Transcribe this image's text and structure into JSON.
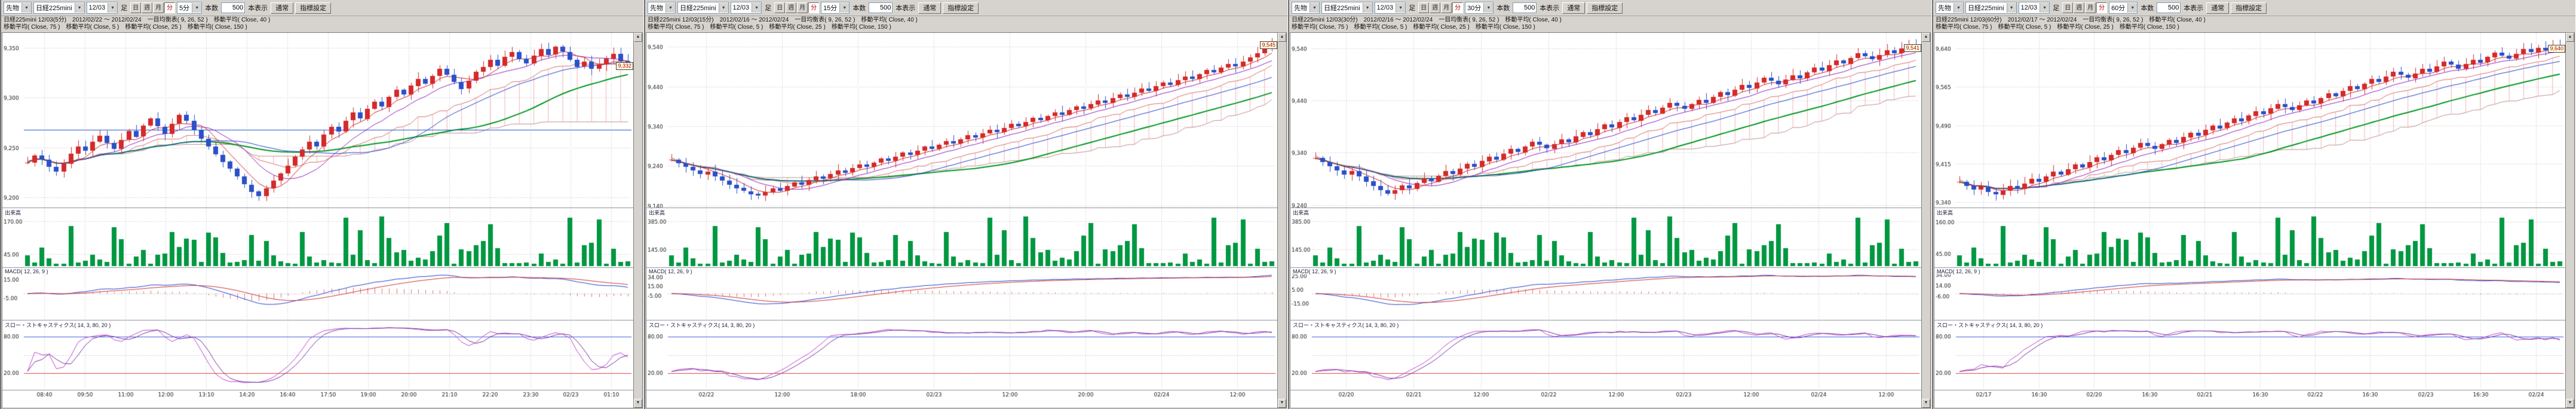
{
  "icons": {
    "chevron_down": "▼",
    "scroll_up": "▲",
    "scroll_down": "▼"
  },
  "colors": {
    "up_candle": "#d42a2a",
    "down_candle": "#2b50c8",
    "ma5": "#d02020",
    "ma10": "#9020c0",
    "ma25": "#2040d0",
    "ma40": "#009820",
    "cloud": "rgba(224,88,88,0.45)",
    "volume_bar": "#009840",
    "macd_line": "#2040d0",
    "macd_signal": "#d03030",
    "macd_hist": "rgba(224,64,64,0.75)",
    "stoch_k": "#c040d0",
    "stoch_d": "#7030a0",
    "stoch_high_line": "#4060e0",
    "stoch_low_line": "#e04040",
    "grid": "#c4c4d0",
    "reference_line": "#2050d0"
  },
  "panels": [
    {
      "toolbar": {
        "category": "先物",
        "symbol": "日経225mini",
        "month": "12/03",
        "bar_label": "足",
        "period_buttons": [
          "日",
          "週",
          "月",
          "分"
        ],
        "active_period": "分",
        "timeframe": "5分",
        "count_label": "本数",
        "count_value": "500",
        "count_unit": "本表示",
        "mode_button": "通常",
        "settings_button": "指標設定"
      },
      "title_line1": "日経225mini 12/03(5分)　2012/02/22 ～ 2012/02/24　一目均衡表( 9, 26, 52 )　移動平均( Close, 40 )",
      "title_line2": "移動平均( Close, 75 )　移動平均( Close, 5 )　移動平均( Close, 25 )　移動平均( Close, 150 )",
      "sections": {
        "volume_label": "出来高",
        "macd_label": "MACD( 12, 26, 9 )",
        "stoch_label": "スロー・ストキャスティクス( 14, 3, 80, 20 )"
      },
      "current_price": "9,332",
      "reference_price": 9268,
      "axes": {
        "price_ticks": [
          "9,350",
          "9,300",
          "9,250",
          "9,200"
        ],
        "volume_ticks": [
          "170.00",
          "45.00"
        ],
        "macd_ticks": [
          "15.00",
          "-5.00"
        ],
        "stoch_ticks": [
          "80.00",
          "20.00"
        ],
        "time_labels": [
          "08:40",
          "09:50",
          "11:00",
          "12:00",
          "13:10",
          "14:20",
          "16:40",
          "17:50",
          "19:00",
          "20:00",
          "21:10",
          "22:20",
          "23:30",
          "02/23",
          "01:10"
        ]
      }
    },
    {
      "toolbar": {
        "category": "先物",
        "symbol": "日経225mini",
        "month": "12/03",
        "bar_label": "足",
        "period_buttons": [
          "日",
          "週",
          "月",
          "分"
        ],
        "active_period": "分",
        "timeframe": "15分",
        "count_label": "本数",
        "count_value": "500",
        "count_unit": "本表示",
        "mode_button": "通常",
        "settings_button": "指標設定"
      },
      "title_line1": "日経225mini 12/03(15分)　2012/02/16 ～ 2012/02/24　一目均衡表( 9, 26, 52 )　移動平均( Close, 40 )",
      "title_line2": "移動平均( Close, 75 )　移動平均( Close, 5 )　移動平均( Close, 25 )　移動平均( Close, 150 )",
      "sections": {
        "volume_label": "出来高",
        "macd_label": "MACD( 12, 26, 9 )",
        "stoch_label": "スロー・ストキャスティクス( 14, 3, 80, 20 )"
      },
      "current_price": "9,545",
      "reference_price": null,
      "axes": {
        "price_ticks": [
          "9,540",
          "9,440",
          "9,340",
          "9,240",
          "9,140"
        ],
        "volume_ticks": [
          "385.00",
          "145.00"
        ],
        "macd_ticks": [
          "34.00",
          "15.00",
          "-5.00"
        ],
        "stoch_ticks": [
          "80.00",
          "20.00"
        ],
        "time_labels": [
          "02/22",
          "12:00",
          "18:00",
          "02/23",
          "12:00",
          "20:00",
          "02/24",
          "12:00"
        ]
      }
    },
    {
      "toolbar": {
        "category": "先物",
        "symbol": "日経225mini",
        "month": "12/03",
        "bar_label": "足",
        "period_buttons": [
          "日",
          "週",
          "月",
          "分"
        ],
        "active_period": "分",
        "timeframe": "30分",
        "count_label": "本数",
        "count_value": "500",
        "count_unit": "本表示",
        "mode_button": "通常",
        "settings_button": "指標設定"
      },
      "title_line1": "日経225mini 12/03(30分)　2012/02/16 ～ 2012/02/24　一目均衡表( 9, 26, 52 )　移動平均( Close, 40 )",
      "title_line2": "移動平均( Close, 75 )　移動平均( Close, 5 )　移動平均( Close, 25 )　移動平均( Close, 150 )",
      "sections": {
        "volume_label": "出来高",
        "macd_label": "MACD( 12, 26, 9 )",
        "stoch_label": "スロー・ストキャスティクス( 14, 3, 80, 20 )"
      },
      "current_price": "9,541",
      "reference_price": null,
      "axes": {
        "price_ticks": [
          "9,540",
          "9,440",
          "9,340",
          "9,240"
        ],
        "volume_ticks": [
          "385.00",
          "145.00"
        ],
        "macd_ticks": [
          "25.00",
          "5.00",
          "-15.00"
        ],
        "stoch_ticks": [
          "80.00",
          "20.00"
        ],
        "time_labels": [
          "02/20",
          "02/21",
          "12:00",
          "02/22",
          "12:00",
          "02/23",
          "12:00",
          "02/24",
          "12:00"
        ]
      }
    },
    {
      "toolbar": {
        "category": "先物",
        "symbol": "日経225mini",
        "month": "12/03",
        "bar_label": "足",
        "period_buttons": [
          "日",
          "週",
          "月",
          "分"
        ],
        "active_period": "分",
        "timeframe": "60分",
        "count_label": "本数",
        "count_value": "500",
        "count_unit": "本表示",
        "mode_button": "通常",
        "settings_button": "指標設定"
      },
      "title_line1": "日経225mini 12/03(60分)　2012/02/17 ～ 2012/02/24　一目均衡表( 9, 26, 52 )　移動平均( Close, 40 )",
      "title_line2": "移動平均( Close, 75 )　移動平均( Close, 5 )　移動平均( Close, 25 )　移動平均( Close, 150 )",
      "sections": {
        "volume_label": "出来高",
        "macd_label": "MACD( 12, 26, 9 )",
        "stoch_label": "スロー・ストキャスティクス( 14, 3, 80, 20 )"
      },
      "current_price": "9,640",
      "reference_price": null,
      "axes": {
        "price_ticks": [
          "9,640",
          "9,565",
          "9,490",
          "9,415",
          "9,340"
        ],
        "volume_ticks": [
          "160.00",
          "45.00"
        ],
        "macd_ticks": [
          "34.00",
          "14.00",
          "-6.00"
        ],
        "stoch_ticks": [
          "80.00",
          "20.00"
        ],
        "time_labels": [
          "02/17",
          "16:30",
          "02/20",
          "16:30",
          "02/21",
          "16:30",
          "02/22",
          "16:30",
          "02/23",
          "16:30",
          "02/24"
        ]
      }
    }
  ],
  "chart_data": [
    {
      "type": "candlestick",
      "title": "日経225mini 12/03 5分足",
      "period": "5分",
      "date_range": "2012/02/22 ～ 2012/02/24",
      "ylim": [
        9190,
        9365
      ],
      "vol_scale": 200,
      "indicators": [
        "一目均衡表(9,26,52)",
        "移動平均(Close 5/25/40/75/150)",
        "出来高",
        "MACD(12,26,9)",
        "スロー・ストキャスティクス(14,3,80,20)"
      ],
      "closes": [
        9235,
        9242,
        9238,
        9231,
        9226,
        9234,
        9244,
        9251,
        9247,
        9256,
        9262,
        9255,
        9249,
        9258,
        9267,
        9261,
        9272,
        9279,
        9271,
        9264,
        9274,
        9283,
        9277,
        9268,
        9259,
        9251,
        9243,
        9236,
        9229,
        9221,
        9213,
        9206,
        9201,
        9209,
        9217,
        9224,
        9232,
        9241,
        9248,
        9256,
        9251,
        9263,
        9271,
        9266,
        9277,
        9285,
        9279,
        9289,
        9296,
        9291,
        9301,
        9308,
        9303,
        9312,
        9319,
        9314,
        9322,
        9329,
        9323,
        9316,
        9309,
        9317,
        9326,
        9331,
        9338,
        9332,
        9341,
        9346,
        9339,
        9334,
        9342,
        9349,
        9343,
        9351,
        9346,
        9338,
        9331,
        9336,
        9329,
        9333,
        9339,
        9344,
        9337,
        9332
      ]
    },
    {
      "type": "candlestick",
      "title": "日経225mini 12/03 15分足",
      "period": "15分",
      "date_range": "2012/02/16 ～ 2012/02/24",
      "ylim": [
        9135,
        9575
      ],
      "vol_scale": 450,
      "indicators": [
        "一目均衡表(9,26,52)",
        "移動平均(Close 5/25/40/75/150)",
        "出来高",
        "MACD(12,26,9)",
        "スロー・ストキャスティクス(14,3,80,20)"
      ],
      "closes": [
        9255,
        9246,
        9237,
        9228,
        9219,
        9226,
        9214,
        9203,
        9193,
        9184,
        9176,
        9169,
        9165,
        9174,
        9183,
        9177,
        9189,
        9199,
        9193,
        9205,
        9214,
        9208,
        9219,
        9229,
        9223,
        9234,
        9243,
        9237,
        9248,
        9258,
        9252,
        9263,
        9273,
        9267,
        9278,
        9288,
        9282,
        9293,
        9302,
        9296,
        9307,
        9317,
        9311,
        9322,
        9331,
        9325,
        9336,
        9346,
        9340,
        9351,
        9361,
        9355,
        9366,
        9375,
        9369,
        9381,
        9390,
        9384,
        9395,
        9405,
        9399,
        9411,
        9420,
        9414,
        9425,
        9435,
        9429,
        9441,
        9450,
        9444,
        9456,
        9465,
        9459,
        9471,
        9481,
        9475,
        9487,
        9496,
        9490,
        9502,
        9513,
        9524,
        9536,
        9545
      ]
    },
    {
      "type": "candlestick",
      "title": "日経225mini 12/03 30分足",
      "period": "30分",
      "date_range": "2012/02/16 ～ 2012/02/24",
      "ylim": [
        9235,
        9570
      ],
      "vol_scale": 450,
      "indicators": [
        "一目均衡表(9,26,52)",
        "移動平均(Close 5/25/40/75/150)",
        "出来高",
        "MACD(12,26,9)",
        "スロー・ストキャスティクス(14,3,80,20)"
      ],
      "closes": [
        9330,
        9322,
        9314,
        9306,
        9298,
        9305,
        9295,
        9285,
        9276,
        9268,
        9261,
        9268,
        9277,
        9271,
        9282,
        9291,
        9285,
        9296,
        9305,
        9299,
        9310,
        9319,
        9313,
        9324,
        9333,
        9327,
        9338,
        9347,
        9341,
        9352,
        9361,
        9355,
        9348,
        9357,
        9366,
        9360,
        9371,
        9380,
        9374,
        9385,
        9394,
        9388,
        9399,
        9408,
        9402,
        9413,
        9422,
        9416,
        9427,
        9436,
        9430,
        9424,
        9433,
        9442,
        9436,
        9447,
        9456,
        9450,
        9461,
        9470,
        9464,
        9475,
        9484,
        9478,
        9471,
        9480,
        9489,
        9483,
        9494,
        9503,
        9497,
        9508,
        9517,
        9511,
        9522,
        9531,
        9525,
        9519,
        9528,
        9537,
        9531,
        9540,
        9545,
        9541
      ]
    },
    {
      "type": "candlestick",
      "title": "日経225mini 12/03 60分足",
      "period": "60分",
      "date_range": "2012/02/17 ～ 2012/02/24",
      "ylim": [
        9330,
        9670
      ],
      "vol_scale": 190,
      "indicators": [
        "一目均衡表(9,26,52)",
        "移動平均(Close 5/25/40/75/150)",
        "出来高",
        "MACD(12,26,9)",
        "スロー・ストキャスティクス(14,3,80,20)"
      ],
      "closes": [
        9380,
        9372,
        9365,
        9371,
        9360,
        9355,
        9363,
        9372,
        9366,
        9377,
        9386,
        9380,
        9391,
        9400,
        9394,
        9405,
        9414,
        9408,
        9419,
        9428,
        9422,
        9433,
        9442,
        9436,
        9447,
        9456,
        9450,
        9444,
        9453,
        9462,
        9456,
        9467,
        9476,
        9470,
        9481,
        9490,
        9484,
        9495,
        9504,
        9498,
        9509,
        9518,
        9512,
        9523,
        9532,
        9526,
        9520,
        9529,
        9538,
        9532,
        9543,
        9552,
        9546,
        9557,
        9566,
        9560,
        9571,
        9580,
        9574,
        9585,
        9594,
        9588,
        9582,
        9591,
        9600,
        9594,
        9605,
        9614,
        9608,
        9600,
        9609,
        9618,
        9612,
        9623,
        9632,
        9626,
        9620,
        9629,
        9638,
        9632,
        9641,
        9636,
        9644,
        9640
      ]
    }
  ]
}
